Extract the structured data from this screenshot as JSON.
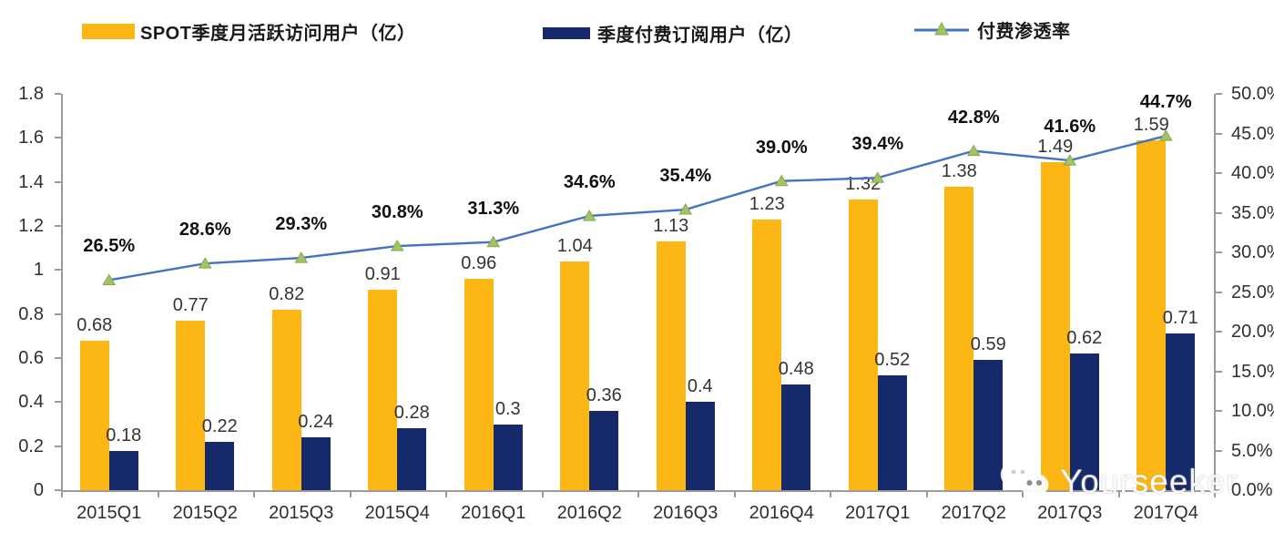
{
  "legend": [
    {
      "label": "SPOT季度月活跃访问用户（亿）",
      "swatch": "bar",
      "color": "#FCB714"
    },
    {
      "label": "季度付费订阅用户（亿）",
      "swatch": "bar",
      "color": "#16296B"
    },
    {
      "label": "付费渗透率",
      "swatch": "line-triangle-marker",
      "line_color": "#4472C4",
      "marker_color": "#A2C465"
    }
  ],
  "chart_data": {
    "type": "bar+line combo",
    "categories": [
      "2015Q1",
      "2015Q2",
      "2015Q3",
      "2015Q4",
      "2016Q1",
      "2016Q2",
      "2016Q3",
      "2016Q4",
      "2017Q1",
      "2017Q2",
      "2017Q3",
      "2017Q4"
    ],
    "series": [
      {
        "name": "SPOT季度月活跃访问用户（亿）",
        "type": "bar",
        "axis": "left",
        "color": "#FCB714",
        "values": [
          0.68,
          0.77,
          0.82,
          0.91,
          0.96,
          1.04,
          1.13,
          1.23,
          1.32,
          1.38,
          1.49,
          1.59
        ],
        "value_labels": [
          "0.68",
          "0.77",
          "0.82",
          "0.91",
          "0.96",
          "1.04",
          "1.13",
          "1.23",
          "1.32",
          "1.38",
          "1.49",
          "1.59"
        ]
      },
      {
        "name": "季度付费订阅用户（亿）",
        "type": "bar",
        "axis": "left",
        "color": "#16296B",
        "values": [
          0.18,
          0.22,
          0.24,
          0.28,
          0.3,
          0.36,
          0.4,
          0.48,
          0.52,
          0.59,
          0.62,
          0.71
        ],
        "value_labels": [
          "0.18",
          "0.22",
          "0.24",
          "0.28",
          "0.3",
          "0.36",
          "0.4",
          "0.48",
          "0.52",
          "0.59",
          "0.62",
          "0.71"
        ]
      },
      {
        "name": "付费渗透率",
        "type": "line",
        "axis": "right",
        "color": "#4472C4",
        "marker": "triangle",
        "marker_color": "#A2C465",
        "values": [
          26.5,
          28.6,
          29.3,
          30.8,
          31.3,
          34.6,
          35.4,
          39.0,
          39.4,
          42.8,
          41.6,
          44.7
        ],
        "value_labels": [
          "26.5%",
          "28.6%",
          "29.3%",
          "30.8%",
          "31.3%",
          "34.6%",
          "35.4%",
          "39.0%",
          "39.4%",
          "42.8%",
          "41.6%",
          "44.7%"
        ]
      }
    ],
    "left_axis": {
      "min": 0,
      "max": 1.8,
      "step": 0.2,
      "tick_labels": [
        "0",
        "0.2",
        "0.4",
        "0.6",
        "0.8",
        "1",
        "1.2",
        "1.4",
        "1.6",
        "1.8"
      ]
    },
    "right_axis": {
      "min": 0,
      "max": 50,
      "step": 5,
      "tick_labels": [
        "0.0%",
        "5.0%",
        "10.0%",
        "15.0%",
        "20.0%",
        "25.0%",
        "30.0%",
        "35.0%",
        "40.0%",
        "45.0%",
        "50.0%"
      ]
    },
    "grid": false,
    "legend_position": "top"
  },
  "colors": {
    "mau_bar": "#FCB714",
    "subs_bar": "#16296B",
    "trend_line": "#4472C4",
    "marker_fill": "#A2C465",
    "marker_edge": "#82A84B",
    "axis": "#9B9B9B"
  },
  "watermark": {
    "icon": "wechat-icon",
    "text": "Yourseeker"
  }
}
